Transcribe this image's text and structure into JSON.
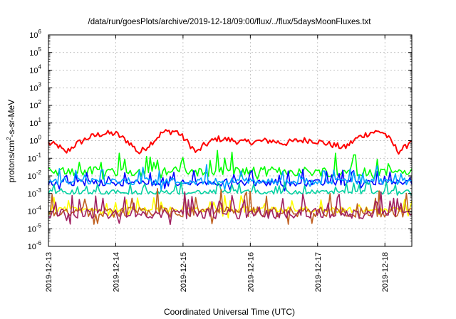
{
  "chart_data": {
    "type": "line",
    "title": "/data/run/goesPlots/archive/2019-12-18/09:00/flux/../flux/5daysMoonFluxes.txt",
    "xlabel": "Coordinated Universal Time (UTC)",
    "ylabel": {
      "base": "protons/cm",
      "sup": "2",
      "rest": "-s-sr-MeV"
    },
    "yscale": "log",
    "ylim_exp": [
      -6,
      6
    ],
    "y_ticks": [
      {
        "base": "10",
        "exp": "-6"
      },
      {
        "base": "10",
        "exp": "-5"
      },
      {
        "base": "10",
        "exp": "-4"
      },
      {
        "base": "10",
        "exp": "-3"
      },
      {
        "base": "10",
        "exp": "-2"
      },
      {
        "base": "10",
        "exp": "-1"
      },
      {
        "base": "10",
        "exp": "0"
      },
      {
        "base": "10",
        "exp": "1"
      },
      {
        "base": "10",
        "exp": "2"
      },
      {
        "base": "10",
        "exp": "3"
      },
      {
        "base": "10",
        "exp": "4"
      },
      {
        "base": "10",
        "exp": "5"
      },
      {
        "base": "10",
        "exp": "6"
      }
    ],
    "x_start": "2019-12-13",
    "x_end_day": 5.4,
    "x_ticks": [
      {
        "label": "2019-12-13",
        "day": 0
      },
      {
        "label": "2019-12-14",
        "day": 1
      },
      {
        "label": "2019-12-15",
        "day": 2
      },
      {
        "label": "2019-12-16",
        "day": 3
      },
      {
        "label": "2019-12-17",
        "day": 4
      },
      {
        "label": "2019-12-18",
        "day": 5
      }
    ],
    "grid": true,
    "series": [
      {
        "color": "#ff0000",
        "style": "smooth",
        "x": [
          0,
          0.15,
          0.25,
          0.4,
          0.6,
          0.8,
          1.0,
          1.2,
          1.35,
          1.5,
          1.7,
          1.9,
          2.0,
          2.1,
          2.2,
          2.3,
          2.5,
          2.7,
          2.9,
          3.1,
          3.3,
          3.5,
          3.7,
          3.9,
          4.0,
          4.2,
          4.4,
          4.6,
          4.8,
          4.95,
          5.0,
          5.1,
          5.2,
          5.3,
          5.4
        ],
        "y": [
          0.7,
          0.5,
          0.2,
          0.6,
          1.5,
          2.5,
          2.5,
          0.8,
          0.2,
          0.6,
          3.0,
          3.5,
          1.5,
          0.6,
          0.2,
          0.5,
          1.3,
          1.1,
          0.8,
          0.9,
          1.0,
          0.7,
          1.0,
          1.1,
          0.9,
          0.6,
          0.4,
          1.5,
          3.0,
          3.2,
          2.5,
          0.8,
          0.25,
          0.4,
          1.3
        ],
        "noise": 0.18
      },
      {
        "color": "#00ff00",
        "style": "spiky",
        "base": 0.018,
        "amp": 0.55
      },
      {
        "color": "#0000ff",
        "style": "spiky",
        "base": 0.004,
        "amp": 0.35
      },
      {
        "color": "#00a0ff",
        "style": "spiky",
        "base": 0.005,
        "amp": 0.4
      },
      {
        "color": "#00d0a0",
        "style": "spiky",
        "base": 0.0012,
        "amp": 0.25
      },
      {
        "color": "#ffff00",
        "style": "spiky",
        "base": 0.00012,
        "amp": 0.35
      },
      {
        "color": "#c06020",
        "style": "spiky",
        "base": 9e-05,
        "amp": 0.6
      },
      {
        "color": "#a02060",
        "style": "spiky",
        "base": 7e-05,
        "amp": 0.55
      }
    ]
  }
}
